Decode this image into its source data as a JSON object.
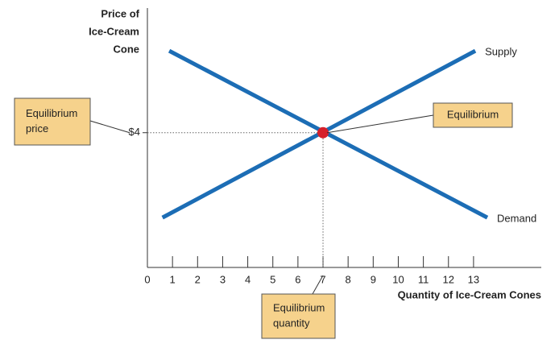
{
  "chart_data": {
    "type": "line",
    "y_label": [
      "Price of",
      "Ice-Cream",
      "Cone"
    ],
    "x_label": "Quantity of Ice-Cream Cones",
    "xlim": [
      0,
      15.7
    ],
    "ylim": [
      0,
      7.7
    ],
    "xticks": [
      0,
      1,
      2,
      3,
      4,
      5,
      6,
      7,
      8,
      9,
      10,
      11,
      12,
      13
    ],
    "yticks": [
      {
        "value": 4,
        "label": "$4"
      }
    ],
    "series": [
      {
        "name": "Supply",
        "color": "#1c6db5",
        "x": [
          0.6,
          13.07
        ],
        "values": [
          1.48,
          6.43
        ]
      },
      {
        "name": "Demand",
        "color": "#1c6db5",
        "x": [
          0.87,
          13.55
        ],
        "values": [
          6.43,
          1.48
        ]
      }
    ],
    "equilibrium": {
      "x": 7,
      "y": 4,
      "color": "#d6202b"
    },
    "annotations": {
      "price": [
        "Equilibrium",
        "price"
      ],
      "point": [
        "Equilibrium"
      ],
      "quantity": [
        "Equilibrium",
        "quantity"
      ]
    }
  }
}
